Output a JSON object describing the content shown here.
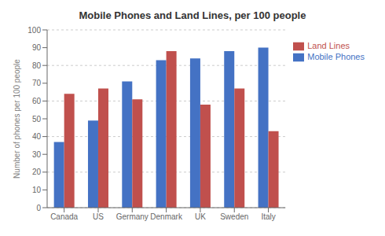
{
  "chart_data": {
    "type": "bar",
    "title": "Mobile Phones and Land Lines, per 100 people",
    "categories": [
      "Canada",
      "US",
      "Germany",
      "Denmark",
      "UK",
      "Sweden",
      "Italy"
    ],
    "series": [
      {
        "name": "Mobile Phones",
        "color": "#4472C4",
        "values": [
          37,
          49,
          71,
          83,
          84,
          88,
          90
        ]
      },
      {
        "name": "Land Lines",
        "color": "#C0504D",
        "values": [
          64,
          67,
          61,
          88,
          58,
          67,
          43
        ]
      }
    ],
    "ylabel": "Number of phones per 100 people",
    "ylim": [
      0,
      100
    ],
    "yticks": [
      0,
      10,
      20,
      30,
      40,
      50,
      60,
      70,
      80,
      90,
      100
    ],
    "grid": true,
    "legend": "right"
  }
}
